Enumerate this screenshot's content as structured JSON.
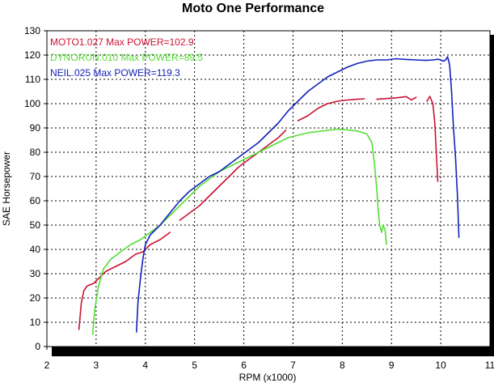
{
  "chart_data": {
    "type": "line",
    "title": "Moto One Performance",
    "xlabel": "RPM (x1000)",
    "ylabel": "SAE Horsepower",
    "xlim": [
      2,
      11
    ],
    "ylim": [
      0,
      130
    ],
    "xticks": [
      2,
      3,
      4,
      5,
      6,
      7,
      8,
      9,
      10,
      11
    ],
    "yticks": [
      0,
      10,
      20,
      30,
      40,
      50,
      60,
      70,
      80,
      90,
      100,
      110,
      120,
      130
    ],
    "grid": true,
    "legend_position": "top-left",
    "series": [
      {
        "name": "MOTO1.027  Max POWER=102.9",
        "color": "#cc1133",
        "segments": [
          [
            [
              2.65,
              7
            ],
            [
              2.7,
              18
            ],
            [
              2.75,
              23
            ],
            [
              2.82,
              25
            ],
            [
              2.95,
              26
            ],
            [
              3.05,
              28
            ],
            [
              3.2,
              31
            ],
            [
              3.4,
              33
            ],
            [
              3.6,
              35
            ],
            [
              3.8,
              38
            ],
            [
              3.95,
              39
            ],
            [
              4.1,
              42
            ],
            [
              4.3,
              44
            ],
            [
              4.5,
              47
            ]
          ],
          [
            [
              4.7,
              52
            ],
            [
              4.9,
              55
            ],
            [
              5.1,
              58
            ],
            [
              5.3,
              62
            ],
            [
              5.5,
              66
            ],
            [
              5.7,
              70
            ],
            [
              5.9,
              74
            ],
            [
              6.1,
              77
            ],
            [
              6.3,
              80
            ],
            [
              6.5,
              83
            ],
            [
              6.7,
              86
            ],
            [
              6.85,
              89
            ]
          ],
          [
            [
              7.1,
              93
            ],
            [
              7.3,
              95
            ],
            [
              7.5,
              98
            ],
            [
              7.7,
              100
            ],
            [
              7.9,
              101
            ],
            [
              8.1,
              101.5
            ],
            [
              8.3,
              101.8
            ],
            [
              8.45,
              102
            ]
          ],
          [
            [
              8.7,
              101.8
            ],
            [
              8.9,
              102.1
            ],
            [
              9.1,
              102.4
            ],
            [
              9.3,
              102.9
            ],
            [
              9.4,
              101.5
            ],
            [
              9.5,
              102.6
            ]
          ],
          [
            [
              9.72,
              101
            ],
            [
              9.78,
              103
            ],
            [
              9.84,
              100
            ],
            [
              9.88,
              92
            ],
            [
              9.91,
              80
            ],
            [
              9.94,
              68
            ]
          ]
        ]
      },
      {
        "name": "DYNORUN.010  Max POWER=89.5",
        "color": "#55dd33",
        "segments": [
          [
            [
              2.93,
              5
            ],
            [
              2.97,
              15
            ],
            [
              3.05,
              25
            ],
            [
              3.15,
              32
            ],
            [
              3.3,
              36
            ],
            [
              3.5,
              39
            ],
            [
              3.7,
              42
            ],
            [
              3.9,
              44
            ],
            [
              4.1,
              47
            ],
            [
              4.3,
              50
            ],
            [
              4.5,
              54
            ],
            [
              4.7,
              58
            ],
            [
              4.9,
              62
            ],
            [
              5.1,
              66
            ],
            [
              5.3,
              69
            ],
            [
              5.5,
              72
            ],
            [
              5.7,
              74
            ],
            [
              5.9,
              76
            ],
            [
              6.1,
              78
            ],
            [
              6.3,
              80
            ],
            [
              6.5,
              82
            ],
            [
              6.7,
              84
            ],
            [
              6.9,
              86
            ],
            [
              7.1,
              87
            ],
            [
              7.3,
              88
            ],
            [
              7.5,
              88.5
            ],
            [
              7.7,
              89
            ],
            [
              7.9,
              89.5
            ],
            [
              8.1,
              89.2
            ],
            [
              8.3,
              88.8
            ],
            [
              8.5,
              87.5
            ],
            [
              8.6,
              84
            ],
            [
              8.65,
              76
            ],
            [
              8.7,
              65
            ],
            [
              8.73,
              56
            ],
            [
              8.76,
              50
            ],
            [
              8.8,
              47
            ],
            [
              8.83,
              50
            ],
            [
              8.87,
              48
            ],
            [
              8.9,
              42
            ]
          ]
        ]
      },
      {
        "name": "NEIL.025  Max POWER=119.3",
        "color": "#1122bb",
        "segments": [
          [
            [
              3.82,
              6
            ],
            [
              3.85,
              18
            ],
            [
              3.9,
              28
            ],
            [
              3.95,
              36
            ],
            [
              4.0,
              42
            ],
            [
              4.1,
              46
            ],
            [
              4.3,
              50
            ],
            [
              4.5,
              55
            ],
            [
              4.7,
              60
            ],
            [
              4.9,
              64
            ],
            [
              5.1,
              67
            ],
            [
              5.3,
              70
            ],
            [
              5.5,
              72
            ],
            [
              5.7,
              75
            ],
            [
              5.9,
              78
            ],
            [
              6.1,
              81
            ],
            [
              6.3,
              84
            ],
            [
              6.5,
              88
            ],
            [
              6.7,
              92
            ],
            [
              6.9,
              97
            ],
            [
              7.1,
              101
            ],
            [
              7.3,
              105
            ],
            [
              7.5,
              108
            ],
            [
              7.7,
              111
            ],
            [
              7.9,
              113
            ],
            [
              8.1,
              115
            ],
            [
              8.3,
              116.5
            ],
            [
              8.5,
              117.5
            ],
            [
              8.7,
              118
            ],
            [
              8.9,
              118
            ],
            [
              9.1,
              118.5
            ],
            [
              9.3,
              118.2
            ],
            [
              9.5,
              118
            ],
            [
              9.7,
              117.8
            ],
            [
              9.85,
              118
            ],
            [
              9.95,
              118.3
            ],
            [
              10.05,
              117.5
            ],
            [
              10.1,
              118
            ],
            [
              10.14,
              119.3
            ],
            [
              10.18,
              116
            ],
            [
              10.22,
              105
            ],
            [
              10.26,
              90
            ],
            [
              10.3,
              78
            ],
            [
              10.34,
              62
            ],
            [
              10.37,
              45
            ]
          ]
        ]
      }
    ]
  }
}
